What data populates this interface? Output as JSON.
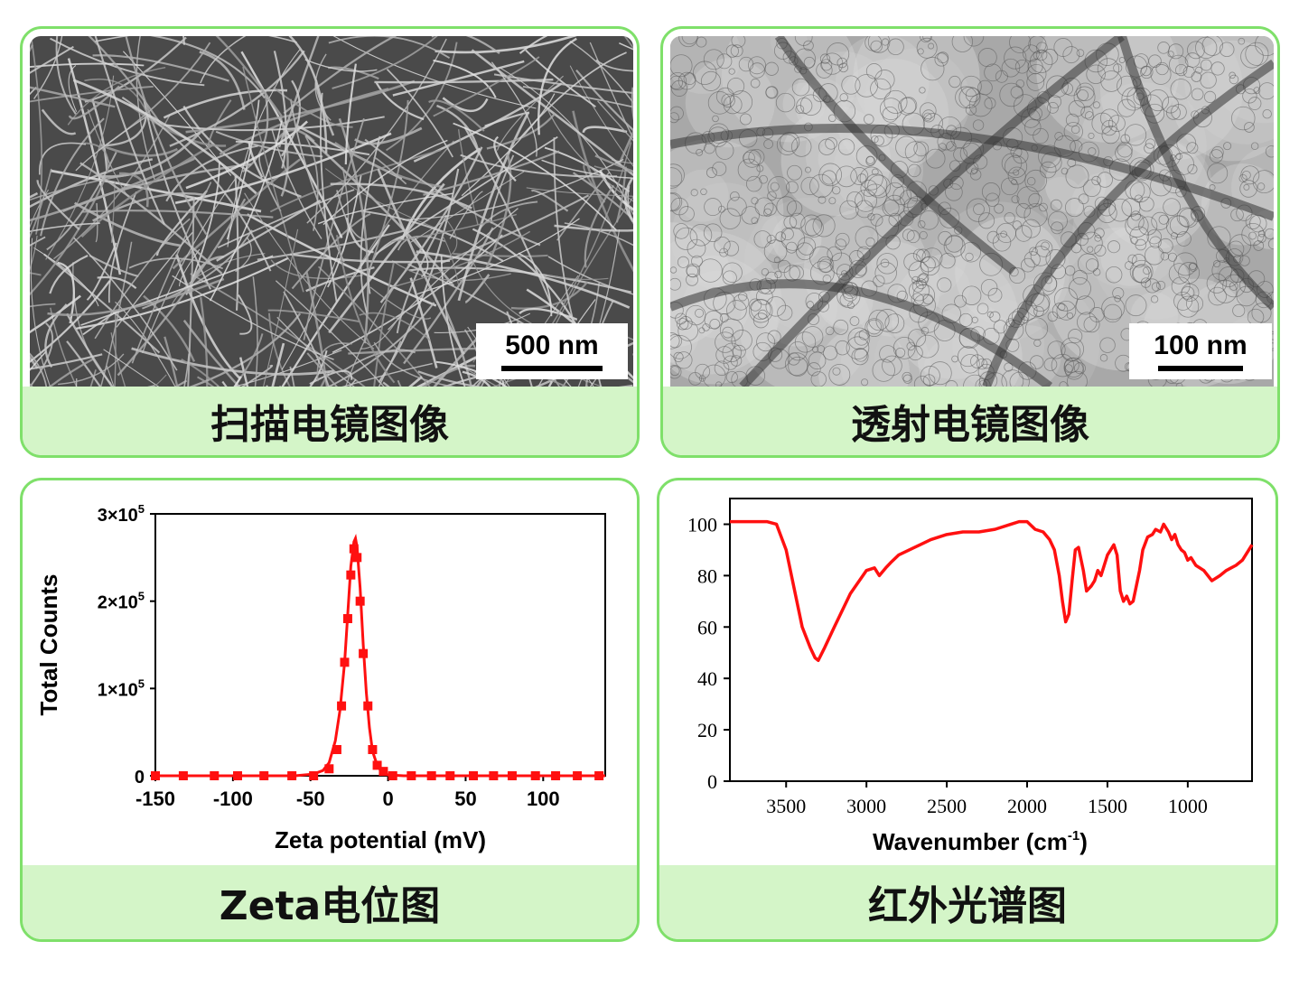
{
  "panels": {
    "sem": {
      "caption": "扫描电镜图像",
      "scale_bar": "500 nm"
    },
    "tem": {
      "caption": "透射电镜图像",
      "scale_bar": "100 nm"
    },
    "zeta": {
      "caption": "Zeta电位图"
    },
    "ftir": {
      "caption": "红外光谱图"
    }
  },
  "colors": {
    "border": "#7fe06a",
    "caption_bg": "#d4f5c8",
    "series": "#ff1010"
  },
  "chart_data": [
    {
      "type": "line",
      "xlabel": "Zeta potential (mV)",
      "ylabel": "Total Counts",
      "xlim": [
        -150,
        140
      ],
      "ylim": [
        0,
        300000
      ],
      "xticks": [
        -150,
        -100,
        -50,
        0,
        50,
        100
      ],
      "xtick_labels": [
        "-150",
        "-100",
        "-50",
        "0",
        "50",
        "100"
      ],
      "yticks": [
        0,
        100000,
        200000,
        300000
      ],
      "ytick_labels": [
        "0",
        "1×10",
        "2×10",
        "3×10"
      ],
      "ytick_exp": [
        "",
        "5",
        "5",
        "5"
      ],
      "series": [
        {
          "values_x": [
            -150,
            -132,
            -112,
            -97,
            -80,
            -62,
            -48,
            -38,
            -33,
            -30,
            -28,
            -26,
            -24,
            -22,
            -20,
            -18,
            -16,
            -13,
            -10,
            -7,
            -3,
            3,
            15,
            28,
            40,
            55,
            68,
            80,
            95,
            108,
            122,
            136
          ],
          "values_y": [
            0,
            0,
            0,
            0,
            0,
            0,
            0,
            8000,
            30000,
            80000,
            130000,
            180000,
            230000,
            260000,
            250000,
            200000,
            140000,
            80000,
            30000,
            12000,
            5000,
            0,
            0,
            0,
            0,
            0,
            0,
            0,
            0,
            0,
            0,
            0
          ],
          "curve_x": [
            -150,
            -60,
            -48,
            -42,
            -38,
            -34,
            -31,
            -28,
            -26,
            -24,
            -22,
            -21,
            -20,
            -18,
            -16,
            -14,
            -12,
            -10,
            -7,
            -4,
            0,
            10,
            140
          ],
          "curve_y": [
            0,
            0,
            2000,
            6000,
            15000,
            40000,
            75000,
            130000,
            185000,
            240000,
            268000,
            272000,
            262000,
            215000,
            150000,
            95000,
            55000,
            28000,
            12000,
            4000,
            1000,
            0,
            0
          ]
        }
      ]
    },
    {
      "type": "line",
      "xlabel": "Wavenumber (cm",
      "xlabel_sup": "-1",
      "xlabel_end": ")",
      "xlim": [
        3850,
        600
      ],
      "ylim": [
        0,
        110
      ],
      "xticks": [
        3500,
        3000,
        2500,
        2000,
        1500,
        1000
      ],
      "xtick_labels": [
        "3500",
        "3000",
        "2500",
        "2000",
        "1500",
        "1000"
      ],
      "yticks": [
        0,
        20,
        40,
        60,
        80,
        100
      ],
      "ytick_labels": [
        "0",
        "20",
        "40",
        "60",
        "80",
        "100"
      ],
      "series": [
        {
          "x": [
            3850,
            3700,
            3620,
            3560,
            3500,
            3450,
            3400,
            3350,
            3320,
            3300,
            3260,
            3200,
            3100,
            3000,
            2950,
            2920,
            2880,
            2850,
            2800,
            2700,
            2600,
            2500,
            2400,
            2300,
            2200,
            2100,
            2050,
            2000,
            1950,
            1900,
            1860,
            1830,
            1800,
            1780,
            1760,
            1740,
            1720,
            1700,
            1680,
            1650,
            1630,
            1600,
            1580,
            1560,
            1540,
            1520,
            1500,
            1480,
            1460,
            1440,
            1420,
            1400,
            1380,
            1360,
            1340,
            1320,
            1300,
            1280,
            1250,
            1220,
            1200,
            1170,
            1150,
            1120,
            1100,
            1080,
            1060,
            1040,
            1020,
            1000,
            980,
            950,
            900,
            850,
            800,
            760,
            730,
            700,
            660,
            620,
            600
          ],
          "y": [
            101,
            101,
            101,
            100,
            90,
            75,
            60,
            52,
            48,
            47,
            52,
            60,
            73,
            82,
            83,
            80,
            83,
            85,
            88,
            91,
            94,
            96,
            97,
            97,
            98,
            100,
            101,
            101,
            98,
            97,
            94,
            90,
            80,
            70,
            62,
            65,
            78,
            90,
            91,
            82,
            74,
            76,
            78,
            82,
            80,
            84,
            88,
            90,
            92,
            88,
            74,
            70,
            72,
            69,
            70,
            76,
            82,
            90,
            95,
            96,
            98,
            97,
            100,
            97,
            94,
            96,
            92,
            90,
            89,
            86,
            87,
            84,
            82,
            78,
            80,
            82,
            83,
            84,
            86,
            90,
            92
          ]
        }
      ]
    }
  ]
}
